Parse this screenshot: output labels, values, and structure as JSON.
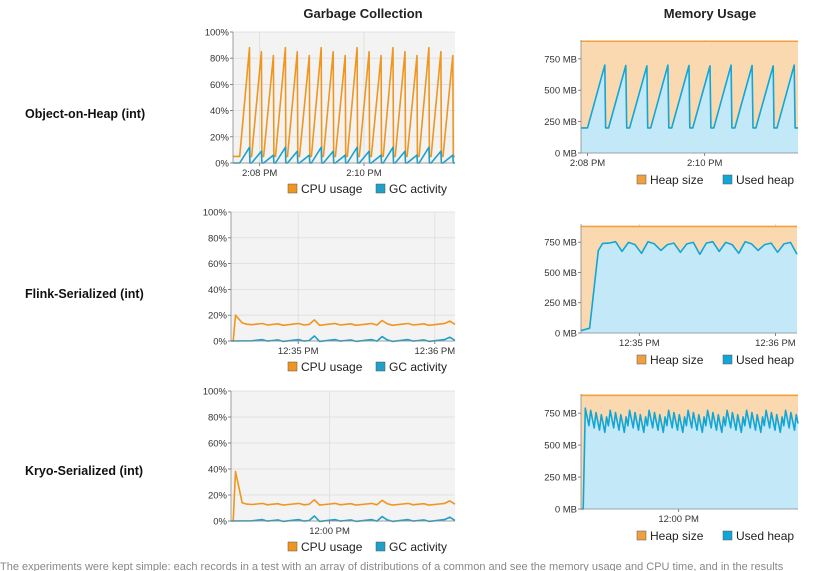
{
  "columns": {
    "gc_title": "Garbage Collection",
    "mem_title": "Memory Usage"
  },
  "rows": [
    {
      "label": "Object-on-Heap (int)"
    },
    {
      "label": "Flink-Serialized (int)"
    },
    {
      "label": "Kryo-Serialized (int)"
    }
  ],
  "colors": {
    "cpu": "#f0961e",
    "gc": "#1ea0c8",
    "heap_fill": "#fbd9b0",
    "heap_line": "#f0a040",
    "used_fill": "#c3e9f8",
    "used_line": "#12a6d6",
    "plot_bg": "#f3f3f3",
    "grid": "#dddddd"
  },
  "chart_data": [
    {
      "id": "gc-object-on-heap",
      "type": "line",
      "title": "",
      "x": [
        "2:08 PM",
        "2:10 PM"
      ],
      "ylim": [
        0,
        100
      ],
      "y_ticks": [
        "0%",
        "20%",
        "40%",
        "60%",
        "80%",
        "100%"
      ],
      "series": [
        {
          "name": "CPU usage",
          "pattern": "sawtooth",
          "low": 5,
          "high": 88,
          "cycles": 18
        },
        {
          "name": "GC activity",
          "pattern": "sawtooth",
          "low": 0,
          "high": 12,
          "cycles": 18
        }
      ],
      "legend": [
        "CPU usage",
        "GC activity"
      ],
      "legend_position": "bottom-right",
      "grid": true
    },
    {
      "id": "mem-object-on-heap",
      "type": "area",
      "title": "",
      "x": [
        "2:08 PM",
        "2:10 PM"
      ],
      "ylim": [
        0,
        900
      ],
      "y_ticks": [
        "0 MB",
        "250 MB",
        "500 MB",
        "750 MB"
      ],
      "series": [
        {
          "name": "Heap size",
          "level": 890
        },
        {
          "name": "Used heap",
          "pattern": "sawtooth",
          "low": 200,
          "high": 700,
          "cycles": 10
        }
      ],
      "legend": [
        "Heap size",
        "Used heap"
      ],
      "legend_position": "bottom-right",
      "grid": true
    },
    {
      "id": "gc-flink-serialized",
      "type": "line",
      "title": "",
      "x": [
        "12:35 PM",
        "12:36 PM"
      ],
      "ylim": [
        0,
        100
      ],
      "y_ticks": [
        "0%",
        "20%",
        "40%",
        "60%",
        "80%",
        "100%"
      ],
      "series": [
        {
          "name": "CPU usage",
          "pattern": "flat",
          "level": 13,
          "spike": 20
        },
        {
          "name": "GC activity",
          "pattern": "flat",
          "level": 0.5
        }
      ],
      "legend": [
        "CPU usage",
        "GC activity"
      ],
      "legend_position": "bottom-right",
      "grid": true
    },
    {
      "id": "mem-flink-serialized",
      "type": "area",
      "title": "",
      "x": [
        "12:35 PM",
        "12:36 PM"
      ],
      "ylim": [
        0,
        900
      ],
      "y_ticks": [
        "0 MB",
        "250 MB",
        "500 MB",
        "750 MB"
      ],
      "series": [
        {
          "name": "Heap size",
          "level": 880
        },
        {
          "name": "Used heap",
          "pattern": "plateau",
          "level": 740,
          "dip": 650
        }
      ],
      "legend": [
        "Heap size",
        "Used heap"
      ],
      "legend_position": "bottom-right",
      "grid": true
    },
    {
      "id": "gc-kryo-serialized",
      "type": "line",
      "title": "",
      "x": [
        "12:00 PM"
      ],
      "ylim": [
        0,
        100
      ],
      "y_ticks": [
        "0%",
        "20%",
        "40%",
        "60%",
        "80%",
        "100%"
      ],
      "series": [
        {
          "name": "CPU usage",
          "pattern": "flat",
          "level": 13,
          "spike": 38
        },
        {
          "name": "GC activity",
          "pattern": "flat",
          "level": 0.5
        }
      ],
      "legend": [
        "CPU usage",
        "GC activity"
      ],
      "legend_position": "bottom-right",
      "grid": true
    },
    {
      "id": "mem-kryo-serialized",
      "type": "area",
      "title": "",
      "x": [
        "12:00 PM"
      ],
      "ylim": [
        0,
        900
      ],
      "y_ticks": [
        "0 MB",
        "250 MB",
        "500 MB",
        "750 MB"
      ],
      "series": [
        {
          "name": "Heap size",
          "level": 890
        },
        {
          "name": "Used heap",
          "pattern": "noisy",
          "low": 600,
          "high": 790
        }
      ],
      "legend": [
        "Heap size",
        "Used heap"
      ],
      "legend_position": "bottom-right",
      "grid": true
    }
  ],
  "caption": "The experiments were kept simple: each records in a test with an array of distributions of a common and see the memory usage and CPU time, and in the results"
}
